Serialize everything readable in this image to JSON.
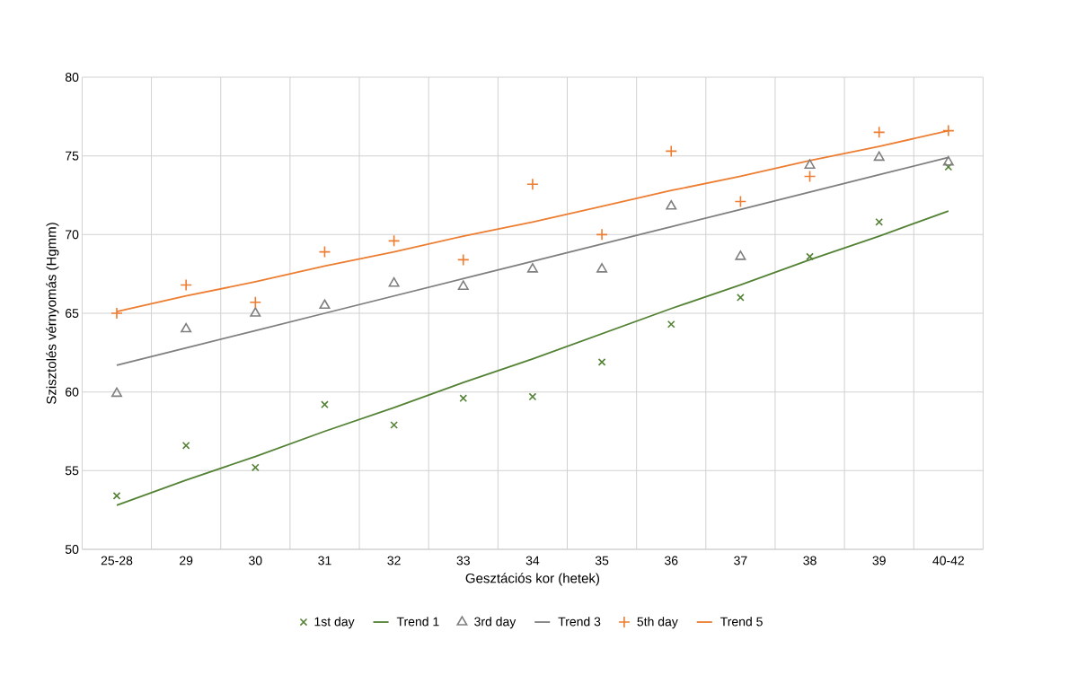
{
  "chart_data": {
    "type": "scatter",
    "xlabel": "Gesztációs kor (hetek)",
    "ylabel": "Szisztolés vérnyomás (Hgmm)",
    "categories": [
      "25-28",
      "29",
      "30",
      "31",
      "32",
      "33",
      "34",
      "35",
      "36",
      "37",
      "38",
      "39",
      "40-42"
    ],
    "ylim": [
      50,
      80
    ],
    "yticks": [
      50,
      55,
      60,
      65,
      70,
      75,
      80
    ],
    "grid": true,
    "legend": "bottom",
    "series": [
      {
        "name": "1st day",
        "type": "scatter",
        "marker": "cross",
        "color": "#548235",
        "values": [
          53.4,
          56.6,
          55.2,
          59.2,
          57.9,
          59.6,
          59.7,
          61.9,
          64.3,
          66.0,
          68.6,
          70.8,
          74.3
        ]
      },
      {
        "name": "Trend 1",
        "type": "line",
        "marker": "none",
        "color": "#548235",
        "values": [
          52.8,
          54.4,
          55.9,
          57.5,
          59.0,
          60.6,
          62.1,
          63.7,
          65.3,
          66.8,
          68.4,
          69.9,
          71.5
        ]
      },
      {
        "name": "3rd day",
        "type": "scatter",
        "marker": "triangle",
        "color": "#7f7f7f",
        "values": [
          59.9,
          64.0,
          65.0,
          65.5,
          66.9,
          66.7,
          67.8,
          67.8,
          71.8,
          68.6,
          74.4,
          74.9,
          74.6
        ]
      },
      {
        "name": "Trend 3",
        "type": "line",
        "marker": "none",
        "color": "#7f7f7f",
        "values": [
          61.7,
          62.8,
          63.9,
          65.0,
          66.1,
          67.2,
          68.3,
          69.4,
          70.5,
          71.6,
          72.7,
          73.8,
          74.9
        ]
      },
      {
        "name": "5th day",
        "type": "scatter",
        "marker": "plus",
        "color": "#ed7d31",
        "values": [
          65.0,
          66.8,
          65.7,
          68.9,
          69.6,
          68.4,
          73.2,
          70.0,
          75.3,
          72.1,
          73.7,
          76.5,
          76.6
        ]
      },
      {
        "name": "Trend 5",
        "type": "line",
        "marker": "none",
        "color": "#ed7d31",
        "values": [
          65.1,
          66.1,
          67.0,
          68.0,
          68.9,
          69.9,
          70.8,
          71.8,
          72.8,
          73.7,
          74.7,
          75.6,
          76.6
        ]
      }
    ]
  }
}
